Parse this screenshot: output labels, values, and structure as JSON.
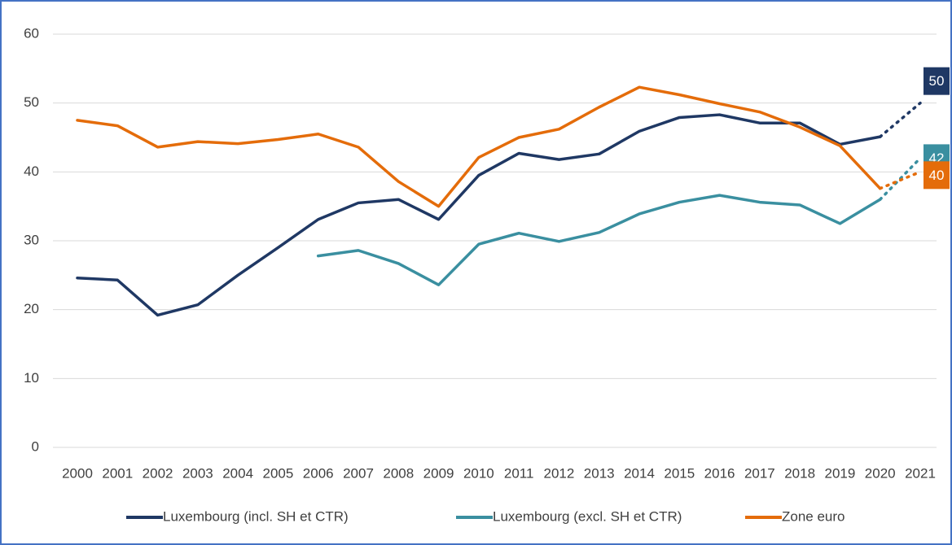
{
  "chart_data": {
    "type": "line",
    "categories": [
      "2000",
      "2001",
      "2002",
      "2003",
      "2004",
      "2005",
      "2006",
      "2007",
      "2008",
      "2009",
      "2010",
      "2011",
      "2012",
      "2013",
      "2014",
      "2015",
      "2016",
      "2017",
      "2018",
      "2019",
      "2020",
      "2021"
    ],
    "series": [
      {
        "name": "Luxembourg (incl. SH et CTR)",
        "color": "#1f3864",
        "dotted_from": "2020",
        "end_label": true,
        "values": [
          24.6,
          24.3,
          19.2,
          20.7,
          25,
          29,
          33.1,
          35.5,
          36,
          33.1,
          39.5,
          42.7,
          41.8,
          42.6,
          45.9,
          47.9,
          48.3,
          47.1,
          47.1,
          44,
          45.1,
          50
        ]
      },
      {
        "name": "Luxembourg (excl. SH et CTR)",
        "color": "#3a8fa0",
        "dotted_from": "2020",
        "end_label": true,
        "values": [
          null,
          null,
          null,
          null,
          null,
          null,
          27.8,
          28.6,
          26.7,
          23.6,
          29.5,
          31.1,
          29.9,
          31.2,
          33.9,
          35.6,
          36.6,
          35.6,
          35.2,
          32.5,
          36,
          42
        ]
      },
      {
        "name": "Zone euro",
        "color": "#e46c0a",
        "dotted_from": "2020",
        "end_label": true,
        "values": [
          47.5,
          46.7,
          43.6,
          44.4,
          44.1,
          44.7,
          45.5,
          43.6,
          38.6,
          35,
          42.1,
          45,
          46.2,
          49.4,
          52.3,
          51.2,
          49.9,
          48.7,
          46.5,
          43.8,
          37.6,
          40
        ]
      }
    ],
    "ylim": [
      0,
      60
    ],
    "yticks": [
      0,
      10,
      20,
      30,
      40,
      50,
      60
    ],
    "grid": true,
    "legend": "bottom"
  }
}
